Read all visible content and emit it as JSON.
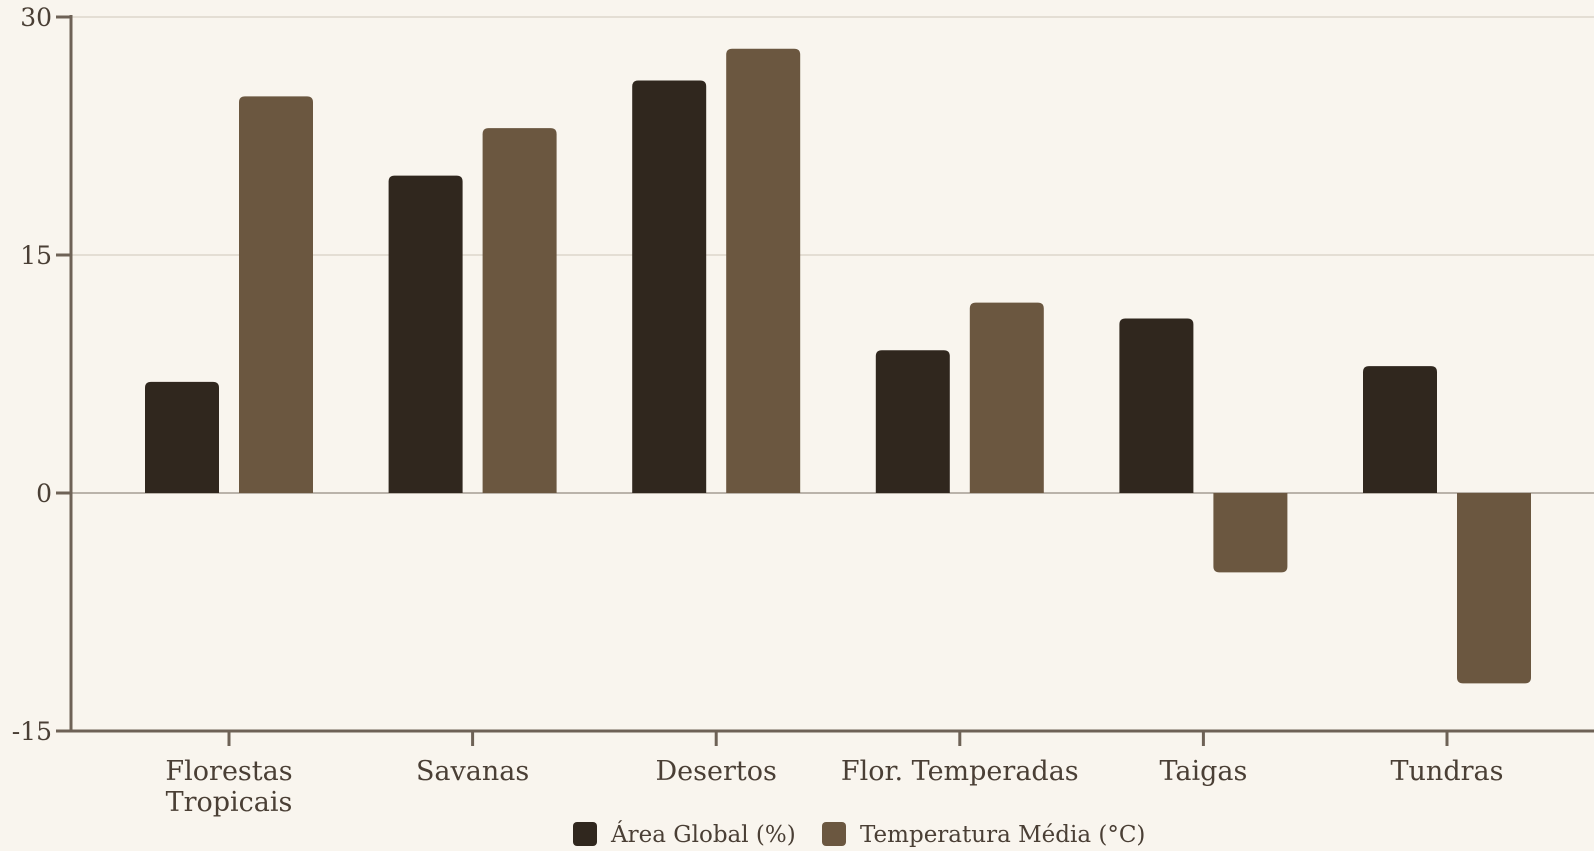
{
  "chart_data": {
    "type": "bar",
    "categories": [
      [
        "Florestas",
        "Tropicais"
      ],
      [
        "Savanas"
      ],
      [
        "Desertos"
      ],
      [
        "Flor. Temperadas"
      ],
      [
        "Taigas"
      ],
      [
        "Tundras"
      ]
    ],
    "series": [
      {
        "name": "Área Global (%)",
        "values": [
          7,
          20,
          26,
          9,
          11,
          8
        ],
        "color": "#30271e"
      },
      {
        "name": "Temperatura Média (°C)",
        "values": [
          25,
          23,
          28,
          12,
          -5,
          -12
        ],
        "color": "#6b5740"
      }
    ],
    "ylim": [
      -15,
      30
    ],
    "yticks": [
      "30",
      "15",
      "0",
      "-15"
    ],
    "grid": true,
    "legend": "bottom"
  },
  "colors": {
    "background": "#f9f5ee",
    "axis": "#6e6256",
    "gridline": "#ddd6cc",
    "zero_line": "#a59d94",
    "text": "#4a3f35"
  }
}
